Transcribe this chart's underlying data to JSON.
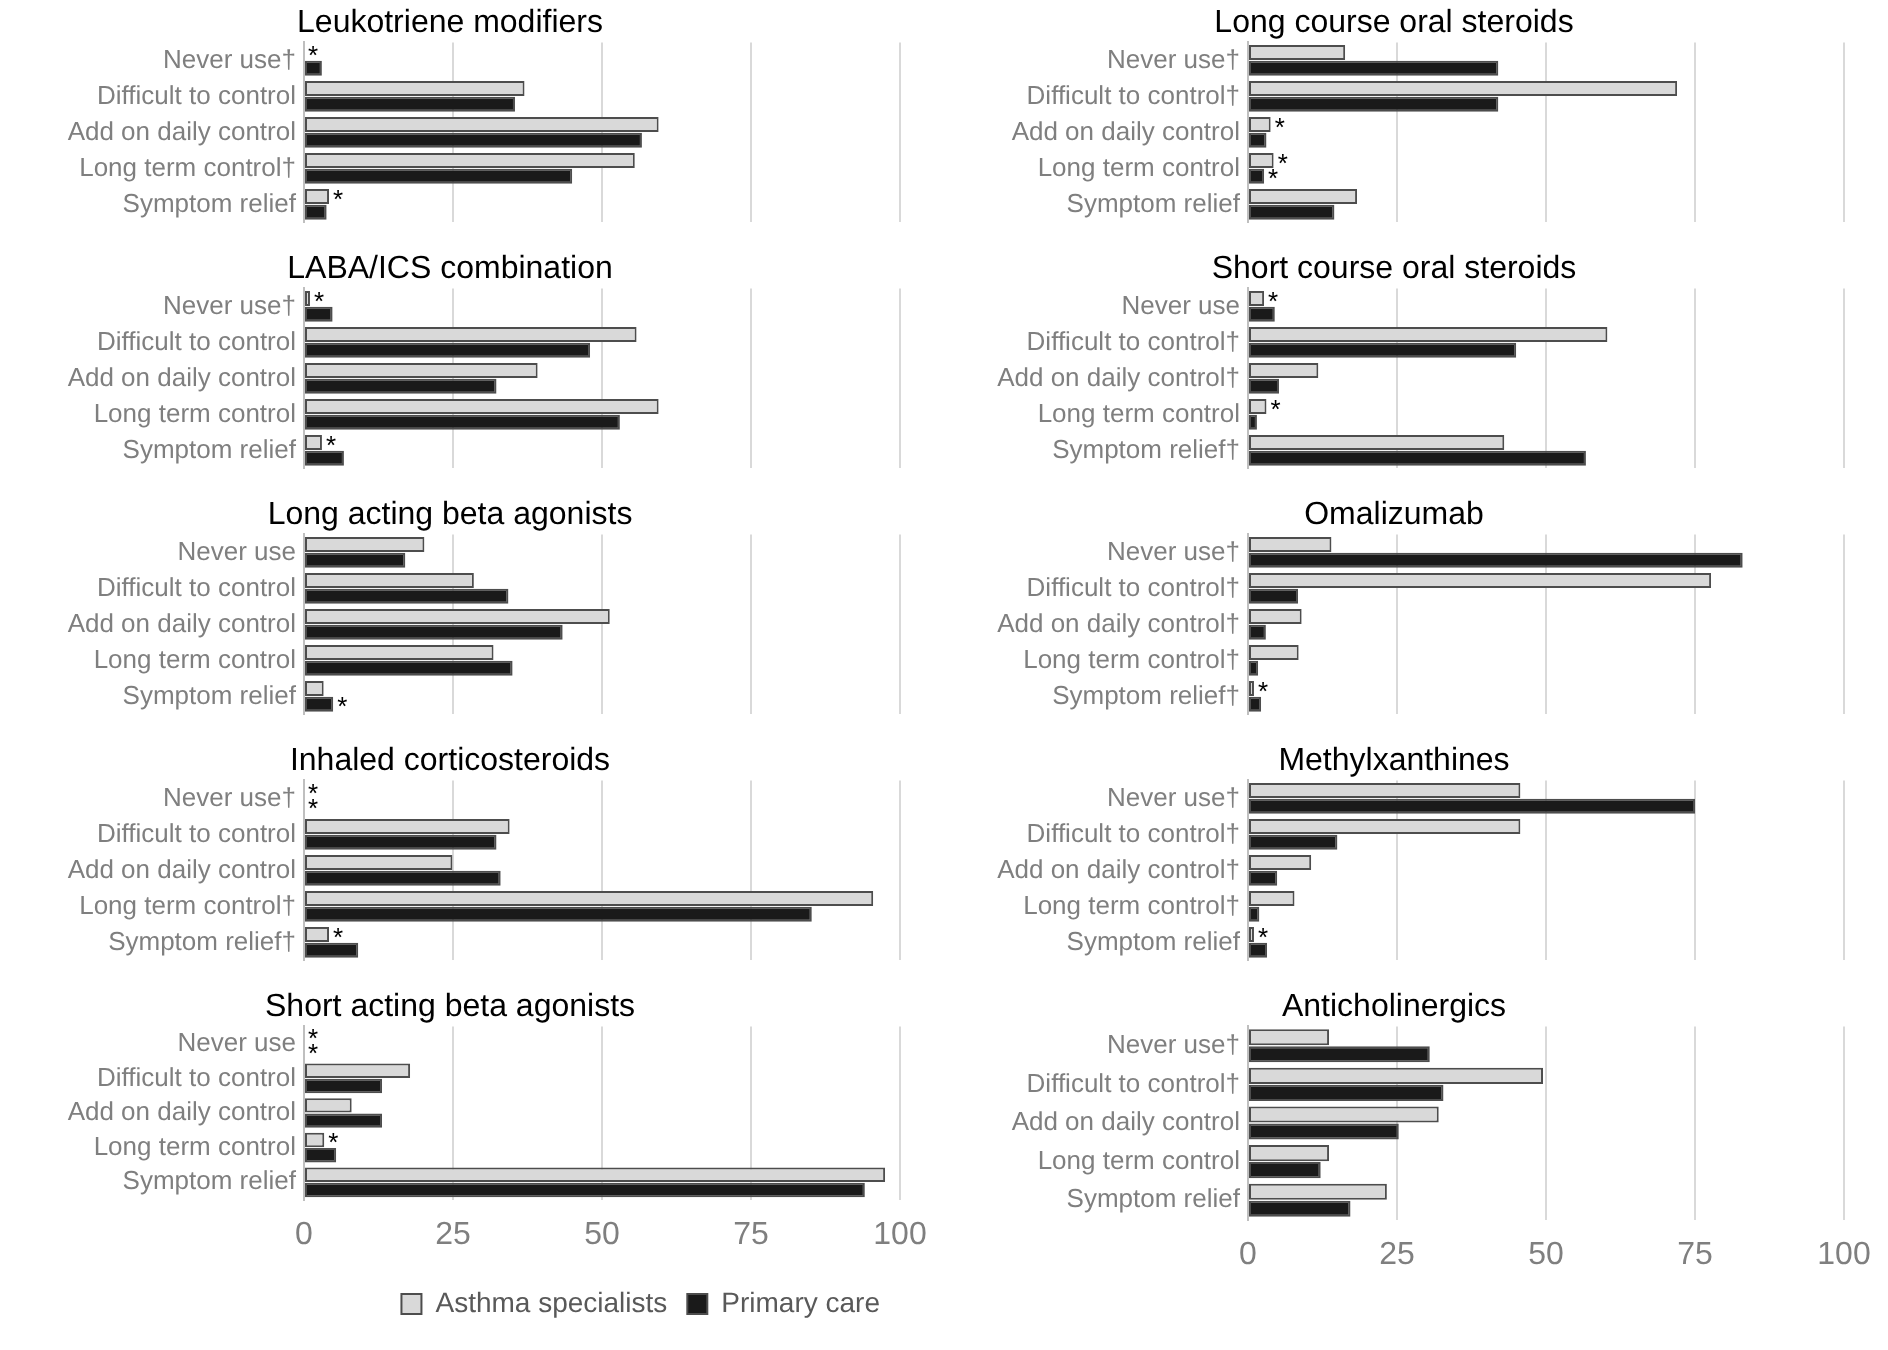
{
  "chart_data": [
    {
      "type": "bar",
      "orientation": "horizontal",
      "title": "Leukotriene modifiers",
      "categories": [
        "Never use†",
        "Difficult to control",
        "Add on daily control",
        "Long term control†",
        "Symptom relief"
      ],
      "xlim": [
        0,
        100
      ],
      "xticks": [
        0,
        25,
        50,
        75,
        100
      ],
      "grid": "x",
      "tick_labels": "y",
      "series": [
        {
          "color": "#d9d9d9",
          "values": [
            0,
            37,
            59.5,
            55.5,
            4.2
          ],
          "value_labels": [
            "*",
            null,
            null,
            null,
            "*"
          ]
        },
        {
          "color": "#1a1a1a",
          "values": [
            3,
            35.4,
            56.7,
            45,
            3.8
          ]
        }
      ]
    },
    {
      "type": "bar",
      "orientation": "horizontal",
      "title": "LABA/ICS combination",
      "categories": [
        "Never use†",
        "Difficult to control",
        "Add on daily control",
        "Long term control",
        "Symptom relief"
      ],
      "xlim": [
        0,
        100
      ],
      "xticks": [
        0,
        25,
        50,
        75,
        100
      ],
      "grid": "x",
      "tick_labels": "y",
      "series": [
        {
          "color": "#d9d9d9",
          "values": [
            1,
            55.8,
            39.2,
            59.5,
            3
          ],
          "value_labels": [
            "*",
            null,
            null,
            null,
            "*"
          ]
        },
        {
          "color": "#1a1a1a",
          "values": [
            4.8,
            48,
            32.3,
            53,
            6.7
          ]
        }
      ]
    },
    {
      "type": "bar",
      "orientation": "horizontal",
      "title": "Long acting beta agonists",
      "categories": [
        "Never use",
        "Difficult to control",
        "Add on daily control",
        "Long term control",
        "Symptom relief"
      ],
      "xlim": [
        0,
        100
      ],
      "xticks": [
        0,
        25,
        50,
        75,
        100
      ],
      "grid": "x",
      "tick_labels": "y",
      "series": [
        {
          "color": "#d9d9d9",
          "values": [
            20.2,
            28.5,
            51.3,
            31.8,
            3.3
          ]
        },
        {
          "color": "#1a1a1a",
          "values": [
            17,
            34.3,
            43.4,
            35,
            4.9
          ],
          "value_labels": [
            null,
            null,
            null,
            null,
            "*"
          ]
        }
      ]
    },
    {
      "type": "bar",
      "orientation": "horizontal",
      "title": "Inhaled corticosteroids",
      "categories": [
        "Never use†",
        "Difficult to control",
        "Add on daily control",
        "Long term control†",
        "Symptom relief†"
      ],
      "xlim": [
        0,
        100
      ],
      "xticks": [
        0,
        25,
        50,
        75,
        100
      ],
      "grid": "x",
      "tick_labels": "y",
      "series": [
        {
          "color": "#d9d9d9",
          "values": [
            0,
            34.5,
            24.9,
            95.5,
            4.2
          ],
          "value_labels": [
            "*",
            null,
            null,
            null,
            "*"
          ]
        },
        {
          "color": "#1a1a1a",
          "values": [
            0,
            32.3,
            33,
            85.2,
            9.1
          ],
          "value_labels": [
            "*",
            null,
            null,
            null,
            null
          ]
        }
      ]
    },
    {
      "type": "bar",
      "orientation": "horizontal",
      "title": "Short acting beta agonists",
      "categories": [
        "Never use",
        "Difficult to control",
        "Add on daily control",
        "Long term control",
        "Symptom relief"
      ],
      "xlim": [
        0,
        100
      ],
      "xticks": [
        0,
        25,
        50,
        75,
        100
      ],
      "grid": "x",
      "legend": "bottom",
      "series": [
        {
          "name": "Asthma specialists",
          "color": "#d9d9d9",
          "values": [
            0,
            17.8,
            8,
            3.4,
            97.5
          ],
          "value_labels": [
            "*",
            null,
            null,
            "*",
            null
          ]
        },
        {
          "name": "Primary care",
          "color": "#1a1a1a",
          "values": [
            0,
            13.1,
            13.1,
            5.4,
            94.1
          ],
          "value_labels": [
            "*",
            null,
            null,
            null,
            null
          ]
        }
      ]
    },
    {
      "type": "bar",
      "orientation": "horizontal",
      "title": "Long course oral steroids",
      "categories": [
        "Never use†",
        "Difficult to control†",
        "Add on daily control",
        "Long term control",
        "Symptom relief"
      ],
      "xlim": [
        0,
        100
      ],
      "xticks": [
        0,
        25,
        50,
        75,
        100
      ],
      "grid": "x",
      "tick_labels": "y",
      "series": [
        {
          "color": "#d9d9d9",
          "values": [
            16.3,
            72,
            3.8,
            4.3,
            18.3
          ],
          "value_labels": [
            null,
            null,
            "*",
            "*",
            null
          ]
        },
        {
          "color": "#1a1a1a",
          "values": [
            42,
            42,
            3.1,
            2.7,
            14.5
          ],
          "value_labels": [
            null,
            null,
            null,
            "*",
            null
          ]
        }
      ]
    },
    {
      "type": "bar",
      "orientation": "horizontal",
      "title": "Short course oral steroids",
      "categories": [
        "Never use",
        "Difficult to control†",
        "Add on daily control†",
        "Long term control",
        "Symptom relief†"
      ],
      "xlim": [
        0,
        100
      ],
      "xticks": [
        0,
        25,
        50,
        75,
        100
      ],
      "grid": "x",
      "tick_labels": "y",
      "series": [
        {
          "color": "#d9d9d9",
          "values": [
            2.7,
            60.3,
            11.8,
            3.1,
            43
          ],
          "value_labels": [
            "*",
            null,
            null,
            "*",
            null
          ]
        },
        {
          "color": "#1a1a1a",
          "values": [
            4.5,
            45,
            5.2,
            1.5,
            56.7
          ]
        }
      ]
    },
    {
      "type": "bar",
      "orientation": "horizontal",
      "title": "Omalizumab",
      "categories": [
        "Never use†",
        "Difficult to control†",
        "Add on daily control†",
        "Long term control†",
        "Symptom relief†"
      ],
      "xlim": [
        0,
        100
      ],
      "xticks": [
        0,
        25,
        50,
        75,
        100
      ],
      "grid": "x",
      "tick_labels": "y",
      "series": [
        {
          "color": "#d9d9d9",
          "values": [
            14,
            77.7,
            9,
            8.5,
            1
          ],
          "value_labels": [
            null,
            null,
            null,
            null,
            "*"
          ]
        },
        {
          "color": "#1a1a1a",
          "values": [
            83,
            8.4,
            3,
            1.7,
            2.2
          ]
        }
      ]
    },
    {
      "type": "bar",
      "orientation": "horizontal",
      "title": "Methylxanthines",
      "categories": [
        "Never use†",
        "Difficult to control†",
        "Add on daily control†",
        "Long term control†",
        "Symptom relief"
      ],
      "xlim": [
        0,
        100
      ],
      "xticks": [
        0,
        25,
        50,
        75,
        100
      ],
      "grid": "x",
      "tick_labels": "y",
      "series": [
        {
          "color": "#d9d9d9",
          "values": [
            45.7,
            45.7,
            10.6,
            7.8,
            1
          ],
          "value_labels": [
            null,
            null,
            null,
            null,
            "*"
          ]
        },
        {
          "color": "#1a1a1a",
          "values": [
            75,
            15,
            4.9,
            1.9,
            3.2
          ]
        }
      ]
    },
    {
      "type": "bar",
      "orientation": "horizontal",
      "title": "Anticholinergics",
      "categories": [
        "Never use†",
        "Difficult to control†",
        "Add on daily control",
        "Long term control",
        "Symptom relief"
      ],
      "xlim": [
        0,
        100
      ],
      "xticks": [
        0,
        25,
        50,
        75,
        100
      ],
      "grid": "x",
      "series": [
        {
          "color": "#d9d9d9",
          "values": [
            13.6,
            49.5,
            32,
            13.6,
            23.3
          ]
        },
        {
          "color": "#1a1a1a",
          "values": [
            30.5,
            32.8,
            25.3,
            12.2,
            17.2
          ]
        }
      ]
    }
  ]
}
